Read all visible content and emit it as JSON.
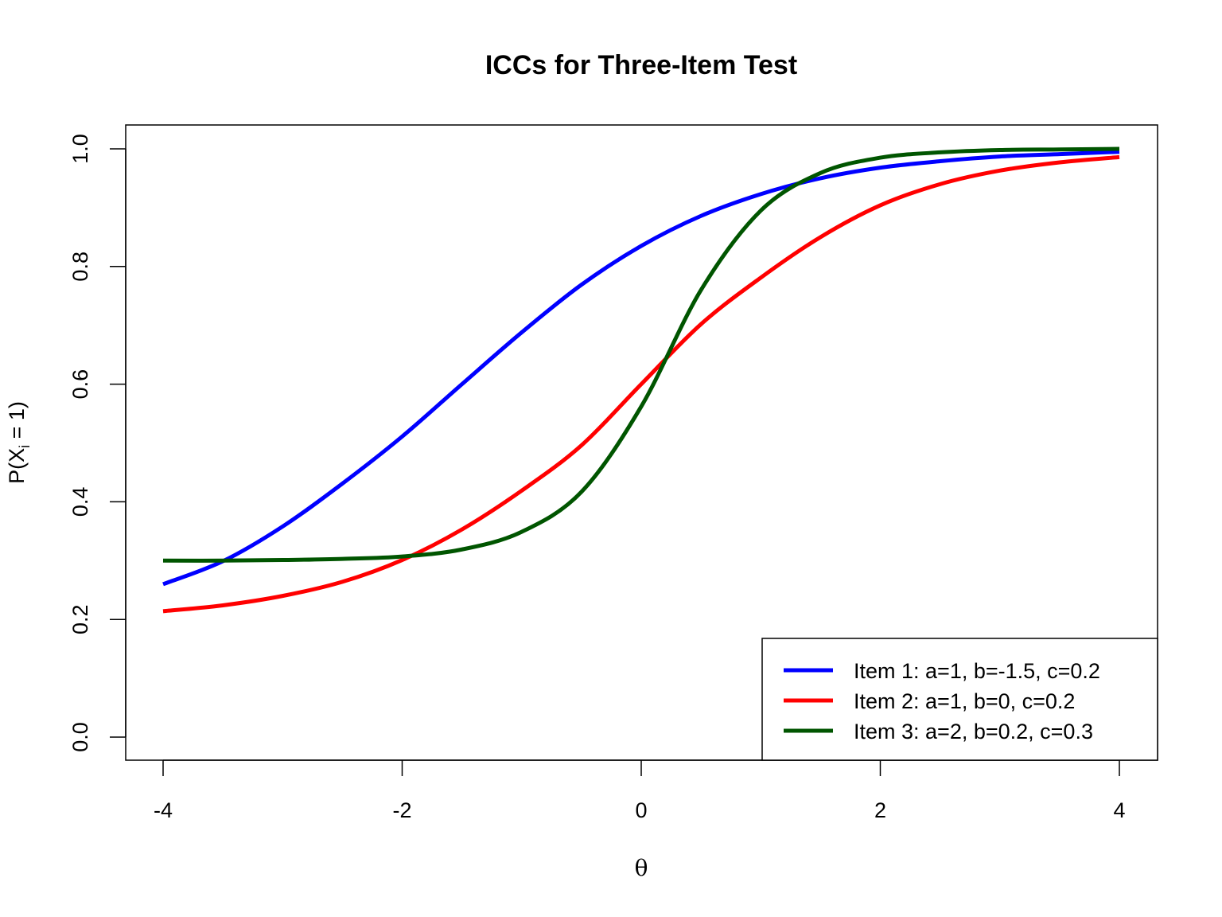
{
  "chart_data": {
    "type": "line",
    "title": "ICCs for Three-Item Test",
    "xlabel": "θ",
    "ylabel_main": "P(X",
    "ylabel_sub": "i",
    "ylabel_tail": " = 1)",
    "xlim": [
      -4,
      4
    ],
    "ylim": [
      0,
      1
    ],
    "xticks": [
      -4,
      -2,
      0,
      2,
      4
    ],
    "xtick_labels": [
      "-4",
      "-2",
      "0",
      "2",
      "4"
    ],
    "yticks": [
      0,
      0.2,
      0.4,
      0.6,
      0.8,
      1
    ],
    "ytick_labels": [
      "0.0",
      "0.2",
      "0.4",
      "0.6",
      "0.8",
      "1.0"
    ],
    "legend_position": "bottom-right",
    "x": [
      -4,
      -3.5,
      -3,
      -2.5,
      -2,
      -1.5,
      -1,
      -0.5,
      0,
      0.5,
      1,
      1.5,
      2,
      2.5,
      3,
      3.5,
      4
    ],
    "series": [
      {
        "name": "Item 1: a=1, b=-1.5, c=0.2",
        "color": "#0000ff",
        "values": [
          0.26,
          0.299,
          0.358,
          0.431,
          0.511,
          0.6,
          0.688,
          0.769,
          0.835,
          0.886,
          0.923,
          0.95,
          0.968,
          0.979,
          0.987,
          0.991,
          0.995
        ]
      },
      {
        "name": "Item 2: a=1, b=0, c=0.2",
        "color": "#ff0000",
        "values": [
          0.214,
          0.224,
          0.24,
          0.264,
          0.301,
          0.353,
          0.419,
          0.496,
          0.6,
          0.702,
          0.781,
          0.85,
          0.904,
          0.94,
          0.963,
          0.977,
          0.986
        ]
      },
      {
        "name": "Item 3: a=2, b=0.2, c=0.3",
        "color": "#005500",
        "values": [
          0.3,
          0.3,
          0.301,
          0.303,
          0.307,
          0.319,
          0.349,
          0.417,
          0.562,
          0.76,
          0.895,
          0.959,
          0.985,
          0.994,
          0.998,
          0.999,
          1.0
        ]
      }
    ]
  }
}
